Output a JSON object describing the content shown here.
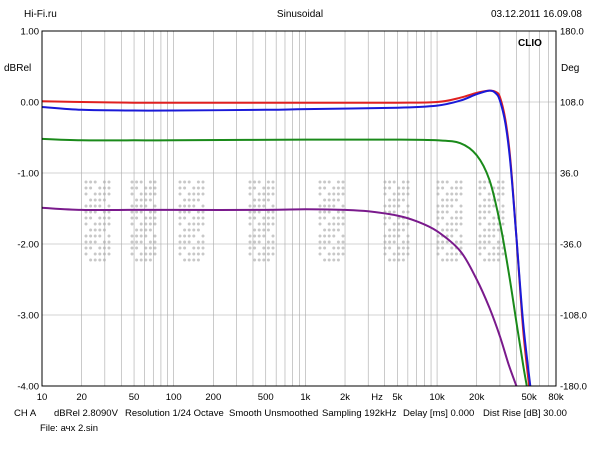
{
  "header": {
    "site": "Hi-Fi.ru",
    "measurement": "Sinusoidal",
    "datetime": "03.12.2011 16.09.08"
  },
  "logo_text": "CLIO",
  "footer": {
    "channel": "CH A",
    "reference": "dBRel 2.8090V",
    "resolution": "Resolution 1/24 Octave",
    "smooth": "Smooth Unsmoothed",
    "sampling": "Sampling 192kHz",
    "delay": "Delay [ms] 0.000",
    "dist_rise": "Dist Rise [dB] 30.00",
    "file": "File: ачх 2.sin"
  },
  "chart_data": {
    "type": "line",
    "xscale": "log",
    "xlim": [
      10,
      80000
    ],
    "x_ticks": [
      {
        "value": 10,
        "label": "10"
      },
      {
        "value": 20,
        "label": "20"
      },
      {
        "value": 50,
        "label": "50"
      },
      {
        "value": 100,
        "label": "100"
      },
      {
        "value": 200,
        "label": "200"
      },
      {
        "value": 500,
        "label": "500"
      },
      {
        "value": 1000,
        "label": "1k"
      },
      {
        "value": 2000,
        "label": "2k"
      },
      {
        "value": 3500,
        "label": "Hz"
      },
      {
        "value": 5000,
        "label": "5k"
      },
      {
        "value": 10000,
        "label": "10k"
      },
      {
        "value": 20000,
        "label": "20k"
      },
      {
        "value": 50000,
        "label": "50k"
      },
      {
        "value": 80000,
        "label": "80k"
      }
    ],
    "ylabel": "dBRel",
    "ylim": [
      -4.0,
      1.0
    ],
    "y_ticks": [
      "1.00",
      "0.00",
      "-1.00",
      "-2.00",
      "-3.00",
      "-4.00"
    ],
    "y2label": "Deg",
    "y2lim": [
      -180,
      180
    ],
    "y2_ticks": [
      "180.0",
      "108.0",
      "36.0",
      "-36.0",
      "-108.0",
      "-180.0"
    ],
    "grid": true,
    "series": [
      {
        "color": "#e02020",
        "x": [
          10,
          20,
          50,
          100,
          500,
          1000,
          5000,
          10000,
          15000,
          20000,
          25000,
          28000,
          30000,
          33000,
          36000,
          40000,
          45000,
          50000
        ],
        "values": [
          0.01,
          0.0,
          -0.01,
          -0.01,
          -0.01,
          -0.01,
          -0.01,
          0.0,
          0.06,
          0.13,
          0.16,
          0.14,
          0.07,
          -0.25,
          -0.8,
          -1.9,
          -3.2,
          -4.0
        ]
      },
      {
        "color": "#1a1ad8",
        "x": [
          10,
          20,
          50,
          100,
          500,
          1000,
          5000,
          10000,
          15000,
          20000,
          25000,
          28000,
          30000,
          33000,
          36000,
          40000,
          45000,
          51000
        ],
        "values": [
          -0.07,
          -0.11,
          -0.12,
          -0.12,
          -0.11,
          -0.1,
          -0.08,
          -0.05,
          0.02,
          0.11,
          0.16,
          0.12,
          0.02,
          -0.3,
          -0.85,
          -1.9,
          -3.1,
          -4.0
        ]
      },
      {
        "color": "#1a8a1a",
        "x": [
          10,
          20,
          50,
          100,
          1000,
          5000,
          10000,
          15000,
          20000,
          25000,
          30000,
          35000,
          40000,
          45000,
          48000
        ],
        "values": [
          -0.52,
          -0.54,
          -0.54,
          -0.54,
          -0.53,
          -0.53,
          -0.54,
          -0.58,
          -0.75,
          -1.1,
          -1.7,
          -2.4,
          -3.1,
          -3.7,
          -4.0
        ]
      },
      {
        "color": "#7a1a8c",
        "x": [
          10,
          20,
          50,
          100,
          500,
          1000,
          2000,
          3000,
          5000,
          7000,
          10000,
          15000,
          20000,
          25000,
          30000,
          35000,
          40000
        ],
        "values": [
          -1.49,
          -1.52,
          -1.52,
          -1.52,
          -1.52,
          -1.51,
          -1.52,
          -1.54,
          -1.6,
          -1.68,
          -1.82,
          -2.1,
          -2.5,
          -2.9,
          -3.3,
          -3.7,
          -4.0
        ]
      }
    ]
  }
}
